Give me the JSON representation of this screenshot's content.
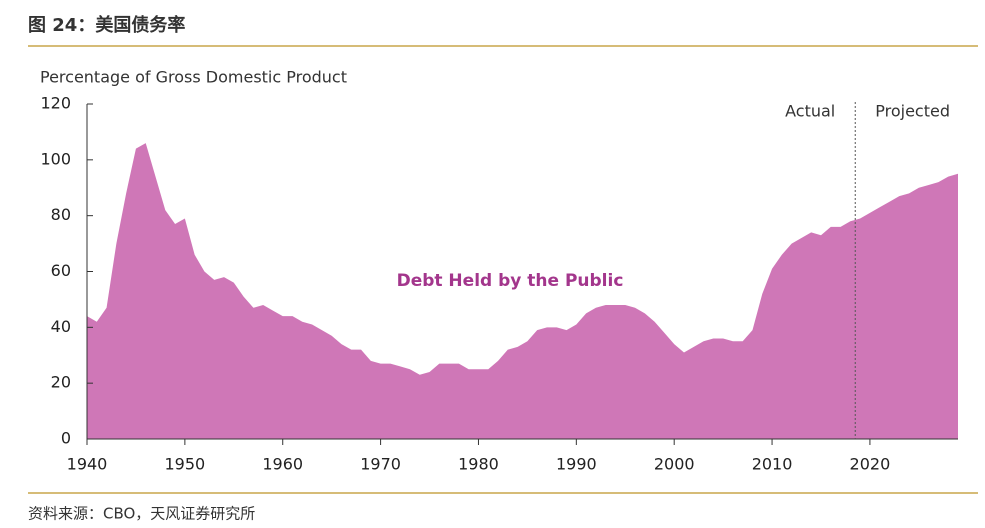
{
  "header": {
    "title": "图 24：美国债务率"
  },
  "footer": {
    "source": "资料来源：CBO，天风证券研究所"
  },
  "chart_data": {
    "type": "area",
    "y_axis_label": "Percentage of Gross Domestic Product",
    "annotations": {
      "actual": "Actual",
      "projected": "Projected",
      "series_label": "Debt Held by the Public"
    },
    "divider_x": 2018.5,
    "color": "#cf77b7",
    "label_color": "#a3368c",
    "xlim": [
      1940,
      2029
    ],
    "xticks": [
      1940,
      1950,
      1960,
      1970,
      1980,
      1990,
      2000,
      2010,
      2020
    ],
    "ylim": [
      0,
      120
    ],
    "yticks": [
      0,
      20,
      40,
      60,
      80,
      100,
      120
    ],
    "x": [
      1940,
      1941,
      1942,
      1943,
      1944,
      1945,
      1946,
      1947,
      1948,
      1949,
      1950,
      1951,
      1952,
      1953,
      1954,
      1955,
      1956,
      1957,
      1958,
      1959,
      1960,
      1961,
      1962,
      1963,
      1964,
      1965,
      1966,
      1967,
      1968,
      1969,
      1970,
      1971,
      1972,
      1973,
      1974,
      1975,
      1976,
      1977,
      1978,
      1979,
      1980,
      1981,
      1982,
      1983,
      1984,
      1985,
      1986,
      1987,
      1988,
      1989,
      1990,
      1991,
      1992,
      1993,
      1994,
      1995,
      1996,
      1997,
      1998,
      1999,
      2000,
      2001,
      2002,
      2003,
      2004,
      2005,
      2006,
      2007,
      2008,
      2009,
      2010,
      2011,
      2012,
      2013,
      2014,
      2015,
      2016,
      2017,
      2018,
      2019,
      2020,
      2021,
      2022,
      2023,
      2024,
      2025,
      2026,
      2027,
      2028,
      2029
    ],
    "values": [
      44,
      42,
      47,
      70,
      88,
      104,
      106,
      94,
      82,
      77,
      79,
      66,
      60,
      57,
      58,
      56,
      51,
      47,
      48,
      46,
      44,
      44,
      42,
      41,
      39,
      37,
      34,
      32,
      32,
      28,
      27,
      27,
      26,
      25,
      23,
      24,
      27,
      27,
      27,
      25,
      25,
      25,
      28,
      32,
      33,
      35,
      39,
      40,
      40,
      39,
      41,
      45,
      47,
      48,
      48,
      48,
      47,
      45,
      42,
      38,
      34,
      31,
      33,
      35,
      36,
      36,
      35,
      35,
      39,
      52,
      61,
      66,
      70,
      72,
      74,
      73,
      76,
      76,
      78,
      79,
      81,
      83,
      85,
      87,
      88,
      90,
      91,
      92,
      94,
      95
    ]
  }
}
